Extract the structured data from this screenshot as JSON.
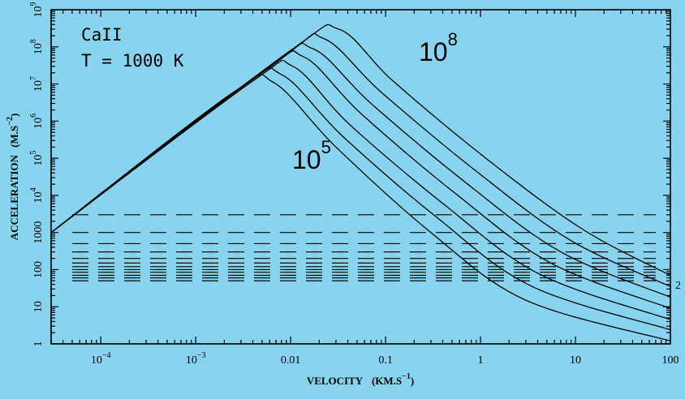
{
  "chart_data": {
    "type": "line",
    "title": "",
    "xlabel": "VELOCITY",
    "xlabel_unit": "(KM.S",
    "xlabel_unit_exp": "−1",
    "ylabel": "ACCELERATION",
    "ylabel_unit": "(M.S",
    "ylabel_unit_exp": "−2",
    "x_scale": "log",
    "y_scale": "log",
    "xlim": [
      3e-05,
      100
    ],
    "ylim": [
      1,
      1000000000
    ],
    "grid": false,
    "x_ticks": [
      {
        "value": 0.0001,
        "base": "10",
        "exp": "−4"
      },
      {
        "value": 0.001,
        "base": "10",
        "exp": "−3"
      },
      {
        "value": 0.01,
        "label": "0.01"
      },
      {
        "value": 0.1,
        "label": "0.1"
      },
      {
        "value": 1,
        "label": "1"
      },
      {
        "value": 10,
        "label": "10"
      },
      {
        "value": 100,
        "label": "100"
      }
    ],
    "y_ticks": [
      {
        "value": 1,
        "label": "1"
      },
      {
        "value": 10,
        "label": "10"
      },
      {
        "value": 100,
        "label": "100"
      },
      {
        "value": 1000,
        "label": "1000"
      },
      {
        "value": 10000,
        "base": "10",
        "exp": "4"
      },
      {
        "value": 100000,
        "base": "10",
        "exp": "5"
      },
      {
        "value": 1000000,
        "base": "10",
        "exp": "6"
      },
      {
        "value": 10000000,
        "base": "10",
        "exp": "7"
      },
      {
        "value": 100000000,
        "base": "10",
        "exp": "8"
      },
      {
        "value": 1000000000,
        "base": "10",
        "exp": "9"
      }
    ],
    "annotations": {
      "species": "CaII",
      "temperature": "T = 1000 K",
      "top_curve": {
        "base": "10",
        "exp": "8"
      },
      "bottom_curve": {
        "base": "10",
        "exp": "5"
      },
      "right_edge": "2"
    },
    "series": [
      {
        "points": [
          [
            3e-05,
            1000
          ],
          [
            0.0025,
            6000000.0
          ],
          [
            0.0066,
            11000000.0
          ],
          [
            0.03,
            200000.0
          ],
          [
            0.3,
            1000
          ],
          [
            3,
            15
          ],
          [
            100,
            1.2
          ]
        ]
      },
      {
        "points": [
          [
            3e-05,
            1000
          ],
          [
            0.003,
            8000000.0
          ],
          [
            0.008,
            18000000.0
          ],
          [
            0.035,
            400000.0
          ],
          [
            0.35,
            2500
          ],
          [
            3.5,
            35
          ],
          [
            100,
            2.4
          ]
        ]
      },
      {
        "points": [
          [
            3e-05,
            1000
          ],
          [
            0.004,
            12000000.0
          ],
          [
            0.0105,
            30000000.0
          ],
          [
            0.042,
            800000.0
          ],
          [
            0.42,
            5500
          ],
          [
            4.2,
            75
          ],
          [
            100,
            4.5
          ]
        ]
      },
      {
        "points": [
          [
            3e-05,
            1000
          ],
          [
            0.005,
            20000000.0
          ],
          [
            0.0135,
            55000000.0
          ],
          [
            0.055,
            1600000.0
          ],
          [
            0.55,
            11000
          ],
          [
            5.5,
            150
          ],
          [
            100,
            9
          ]
        ]
      },
      {
        "points": [
          [
            3e-05,
            1000
          ],
          [
            0.006,
            30000000.0
          ],
          [
            0.017,
            90000000.0
          ],
          [
            0.07,
            3000000.0
          ],
          [
            0.7,
            22000
          ],
          [
            7,
            300
          ],
          [
            100,
            18
          ]
        ]
      },
      {
        "points": [
          [
            3e-05,
            1000
          ],
          [
            0.008,
            50000000.0
          ],
          [
            0.022,
            170000000.0
          ],
          [
            0.09,
            6000000.0
          ],
          [
            0.9,
            45000
          ],
          [
            9,
            600
          ],
          [
            100,
            35
          ]
        ]
      },
      {
        "points": [
          [
            3e-05,
            1000
          ],
          [
            0.01,
            80000000.0
          ],
          [
            0.032,
            300000000.0
          ],
          [
            0.12,
            12000000.0
          ],
          [
            1.2,
            90000
          ],
          [
            12,
            1200
          ],
          [
            100,
            70
          ]
        ]
      }
    ],
    "dashed_levels": [
      3000,
      1000,
      500,
      300,
      200,
      150,
      120,
      100,
      85,
      70,
      60,
      50
    ]
  }
}
